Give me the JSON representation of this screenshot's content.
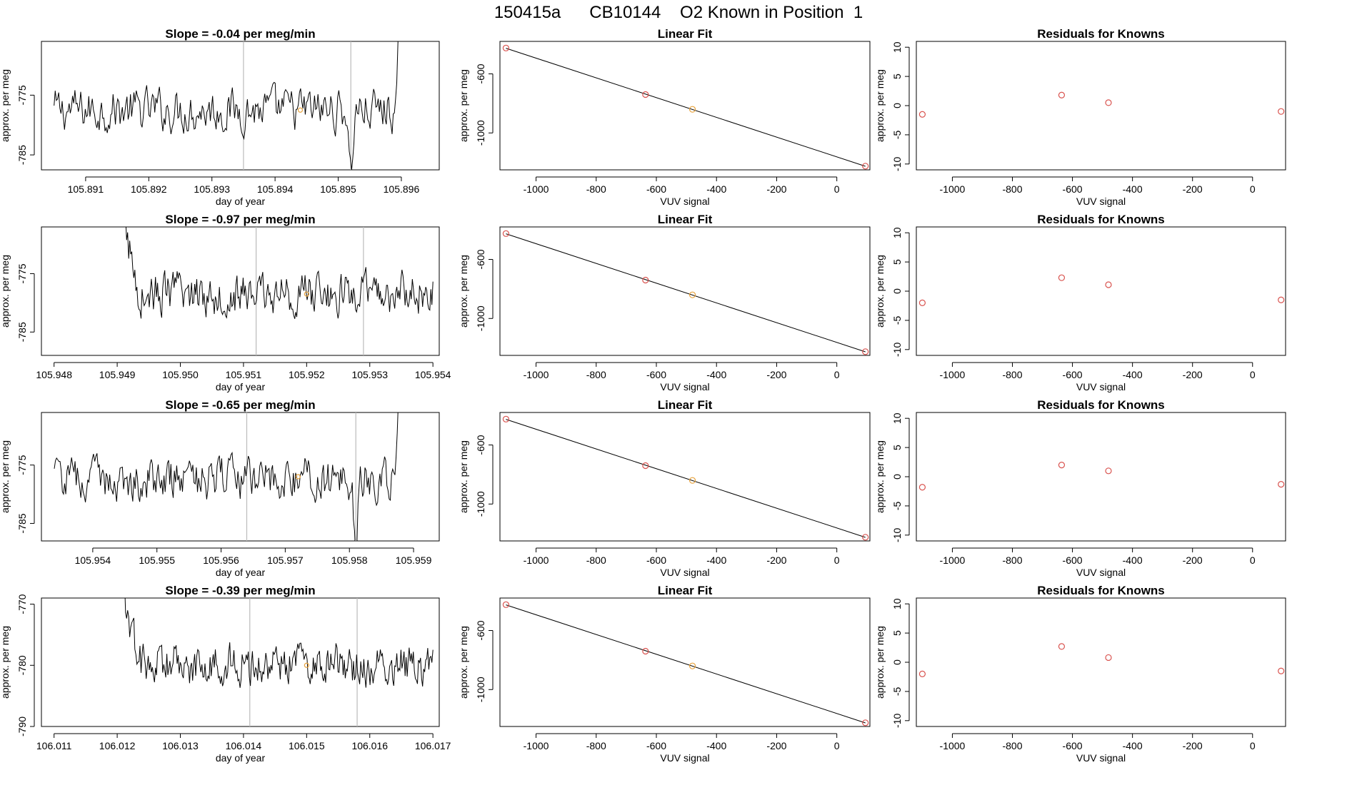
{
  "page": {
    "title": "150415a      CB10144    O2 Known in Position  1"
  },
  "colors": {
    "trace": "#000000",
    "known_marker": "#e8a33d",
    "fit_marker": "#d9534f",
    "fit_line": "#000000",
    "vline": "#bbbbbb",
    "frame": "#000000"
  },
  "chart_data": [
    {
      "type": "line",
      "row": 1,
      "title": "Slope =  -0.04  per meg/min",
      "xlabel": "day of year",
      "ylabel": "approx. per meg",
      "xticks": [
        "105.891",
        "105.892",
        "105.893",
        "105.894",
        "105.895",
        "105.896"
      ],
      "yticks": [
        "-775",
        "-785"
      ],
      "xlim": [
        105.8903,
        105.8966
      ],
      "ylim": [
        -787.5,
        -766
      ],
      "series_x_range": [
        105.8905,
        105.896
      ],
      "series_y_base": -777.5,
      "vlines": [
        105.8935,
        105.8952
      ],
      "known_point": {
        "x": 105.8944,
        "y": -777.5
      }
    },
    {
      "type": "scatter",
      "row": 1,
      "title": "Linear Fit",
      "xlabel": "VUV signal",
      "ylabel": "approx. per meg",
      "xticks": [
        "-1000",
        "-800",
        "-600",
        "-400",
        "-200",
        "0"
      ],
      "yticks": [
        "-600",
        "-1000"
      ],
      "xlim": [
        -1120,
        110
      ],
      "ylim": [
        -1250,
        -380
      ],
      "points": [
        {
          "x": -1100,
          "y": -425
        },
        {
          "x": -636,
          "y": -740
        },
        {
          "x": -480,
          "y": -840
        },
        {
          "x": 95,
          "y": -1225
        }
      ],
      "highlight_index": 2
    },
    {
      "type": "scatter",
      "row": 1,
      "title": "Residuals for Knowns",
      "xlabel": "VUV signal",
      "ylabel": "approx. per meg",
      "xticks": [
        "-1000",
        "-800",
        "-600",
        "-400",
        "-200",
        "0"
      ],
      "yticks": [
        "10",
        "5",
        "0",
        "-5",
        "-10"
      ],
      "xlim": [
        -1120,
        110
      ],
      "ylim": [
        -11,
        11
      ],
      "points": [
        {
          "x": -1100,
          "y": -1.5
        },
        {
          "x": -636,
          "y": 1.8
        },
        {
          "x": -480,
          "y": 0.5
        },
        {
          "x": 95,
          "y": -1.0
        }
      ]
    },
    {
      "type": "line",
      "row": 2,
      "title": "Slope =  -0.97  per meg/min",
      "xlabel": "day of year",
      "ylabel": "approx. per meg",
      "xticks": [
        "105.948",
        "105.949",
        "105.950",
        "105.951",
        "105.952",
        "105.953",
        "105.954"
      ],
      "yticks": [
        "-775",
        "-785"
      ],
      "xlim": [
        105.9478,
        105.9541
      ],
      "ylim": [
        -789,
        -767
      ],
      "series_x_range": [
        105.9491,
        105.954
      ],
      "series_y_base": -778.5,
      "vlines": [
        105.9512,
        105.9529
      ],
      "known_point": {
        "x": 105.952,
        "y": -778.5
      }
    },
    {
      "type": "scatter",
      "row": 2,
      "title": "Linear Fit",
      "xlabel": "VUV signal",
      "ylabel": "approx. per meg",
      "xticks": [
        "-1000",
        "-800",
        "-600",
        "-400",
        "-200",
        "0"
      ],
      "yticks": [
        "-600",
        "-1000"
      ],
      "xlim": [
        -1120,
        110
      ],
      "ylim": [
        -1250,
        -380
      ],
      "points": [
        {
          "x": -1100,
          "y": -425
        },
        {
          "x": -636,
          "y": -740
        },
        {
          "x": -480,
          "y": -840
        },
        {
          "x": 95,
          "y": -1225
        }
      ],
      "highlight_index": 2
    },
    {
      "type": "scatter",
      "row": 2,
      "title": "Residuals for Knowns",
      "xlabel": "VUV signal",
      "ylabel": "approx. per meg",
      "xticks": [
        "-1000",
        "-800",
        "-600",
        "-400",
        "-200",
        "0"
      ],
      "yticks": [
        "10",
        "5",
        "0",
        "-5",
        "-10"
      ],
      "xlim": [
        -1120,
        110
      ],
      "ylim": [
        -11,
        11
      ],
      "points": [
        {
          "x": -1100,
          "y": -2.0
        },
        {
          "x": -636,
          "y": 2.3
        },
        {
          "x": -480,
          "y": 1.1
        },
        {
          "x": 95,
          "y": -1.5
        }
      ]
    },
    {
      "type": "line",
      "row": 3,
      "title": "Slope =  -0.65  per meg/min",
      "xlabel": "day of year",
      "ylabel": "approx. per meg",
      "xticks": [
        "105.954",
        "105.955",
        "105.956",
        "105.957",
        "105.958",
        "105.959"
      ],
      "yticks": [
        "-775",
        "-785"
      ],
      "xlim": [
        105.9532,
        105.9594
      ],
      "ylim": [
        -788,
        -766
      ],
      "series_x_range": [
        105.9534,
        105.9588
      ],
      "series_y_base": -777.5,
      "vlines": [
        105.9564,
        105.9581
      ],
      "known_point": {
        "x": 105.9572,
        "y": -777.0
      }
    },
    {
      "type": "scatter",
      "row": 3,
      "title": "Linear Fit",
      "xlabel": "VUV signal",
      "ylabel": "approx. per meg",
      "xticks": [
        "-1000",
        "-800",
        "-600",
        "-400",
        "-200",
        "0"
      ],
      "yticks": [
        "-600",
        "-1000"
      ],
      "xlim": [
        -1120,
        110
      ],
      "ylim": [
        -1250,
        -380
      ],
      "points": [
        {
          "x": -1100,
          "y": -425
        },
        {
          "x": -636,
          "y": -740
        },
        {
          "x": -480,
          "y": -840
        },
        {
          "x": 95,
          "y": -1225
        }
      ],
      "highlight_index": 2
    },
    {
      "type": "scatter",
      "row": 3,
      "title": "Residuals for Knowns",
      "xlabel": "VUV signal",
      "ylabel": "approx. per meg",
      "xticks": [
        "-1000",
        "-800",
        "-600",
        "-400",
        "-200",
        "0"
      ],
      "yticks": [
        "10",
        "5",
        "0",
        "-5",
        "-10"
      ],
      "xlim": [
        -1120,
        110
      ],
      "ylim": [
        -11,
        11
      ],
      "points": [
        {
          "x": -1100,
          "y": -1.8
        },
        {
          "x": -636,
          "y": 2.0
        },
        {
          "x": -480,
          "y": 1.0
        },
        {
          "x": 95,
          "y": -1.3
        }
      ]
    },
    {
      "type": "line",
      "row": 4,
      "title": "Slope =  -0.39  per meg/min",
      "xlabel": "day of year",
      "ylabel": "approx. per meg",
      "xticks": [
        "106.011",
        "106.012",
        "106.013",
        "106.014",
        "106.015",
        "106.016",
        "106.017"
      ],
      "yticks": [
        "-770",
        "-780",
        "-790"
      ],
      "xlim": [
        106.0108,
        106.0171
      ],
      "ylim": [
        -790,
        -769
      ],
      "series_x_range": [
        106.0121,
        106.017
      ],
      "series_y_base": -780,
      "vlines": [
        106.0141,
        106.0158
      ],
      "known_point": {
        "x": 106.015,
        "y": -780
      }
    },
    {
      "type": "scatter",
      "row": 4,
      "title": "Linear Fit",
      "xlabel": "VUV signal",
      "ylabel": "approx. per meg",
      "xticks": [
        "-1000",
        "-800",
        "-600",
        "-400",
        "-200",
        "0"
      ],
      "yticks": [
        "-600",
        "-1000"
      ],
      "xlim": [
        -1120,
        110
      ],
      "ylim": [
        -1250,
        -380
      ],
      "points": [
        {
          "x": -1100,
          "y": -425
        },
        {
          "x": -636,
          "y": -740
        },
        {
          "x": -480,
          "y": -840
        },
        {
          "x": 95,
          "y": -1225
        }
      ],
      "highlight_index": 2
    },
    {
      "type": "scatter",
      "row": 4,
      "title": "Residuals for Knowns",
      "xlabel": "VUV signal",
      "ylabel": "approx. per meg",
      "xticks": [
        "-1000",
        "-800",
        "-600",
        "-400",
        "-200",
        "0"
      ],
      "yticks": [
        "10",
        "5",
        "0",
        "-5",
        "-10"
      ],
      "xlim": [
        -1120,
        110
      ],
      "ylim": [
        -11,
        11
      ],
      "points": [
        {
          "x": -1100,
          "y": -2.0
        },
        {
          "x": -636,
          "y": 2.7
        },
        {
          "x": -480,
          "y": 0.8
        },
        {
          "x": 95,
          "y": -1.5
        }
      ]
    }
  ]
}
